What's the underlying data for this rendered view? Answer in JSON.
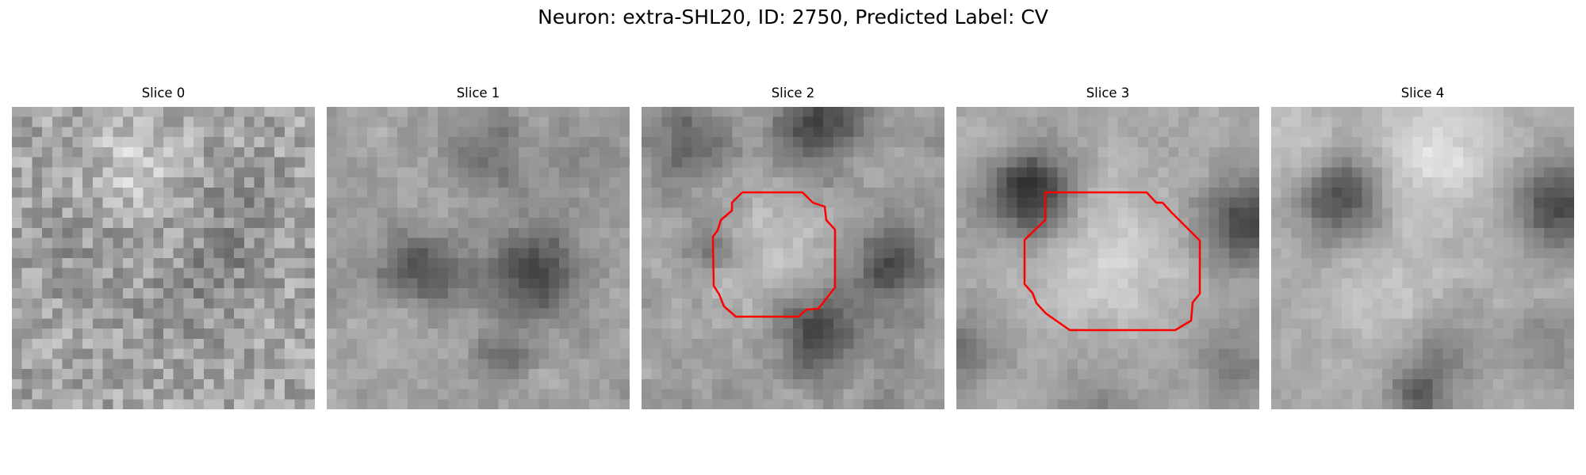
{
  "figure": {
    "title": "Neuron: extra-SHL20, ID: 2750, Predicted Label: CV"
  },
  "slices": [
    {
      "title": "Slice 0",
      "has_contour": false
    },
    {
      "title": "Slice 1",
      "has_contour": false
    },
    {
      "title": "Slice 2",
      "has_contour": true
    },
    {
      "title": "Slice 3",
      "has_contour": true
    },
    {
      "title": "Slice 4",
      "has_contour": false
    }
  ],
  "colors": {
    "contour": "#ff0000",
    "colormap": "gray"
  }
}
